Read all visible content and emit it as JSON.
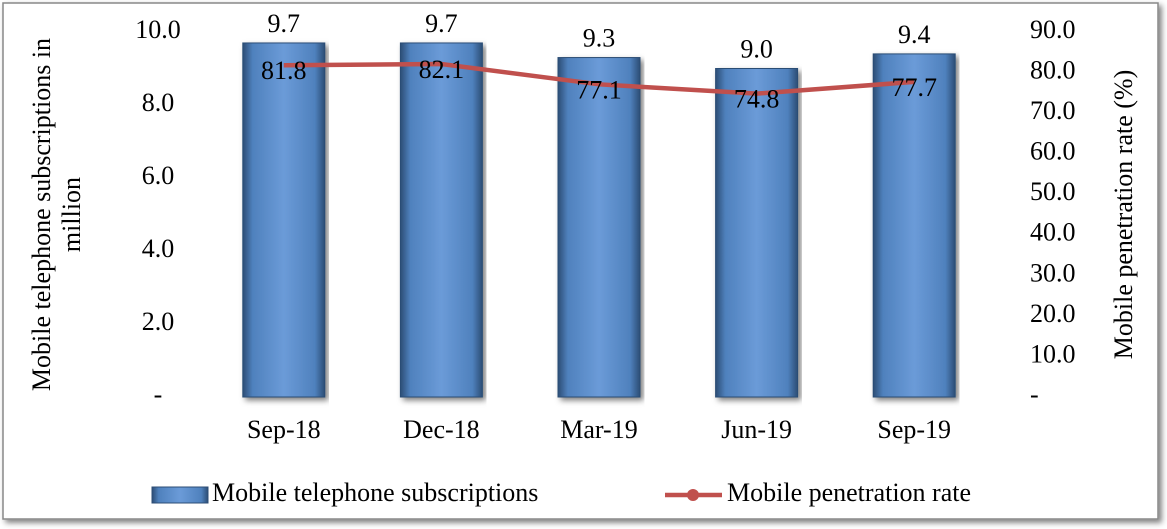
{
  "chart_data": {
    "type": "bar",
    "categories": [
      "Sep-18",
      "Dec-18",
      "Mar-19",
      "Jun-19",
      "Sep-19"
    ],
    "series": [
      {
        "name": "Mobile telephone subscriptions",
        "color": "#4f81bd",
        "values": [
          9.7,
          9.7,
          9.3,
          9.0,
          9.4
        ],
        "value_labels": [
          "9.7",
          "9.7",
          "9.3",
          "9.0",
          "9.4"
        ]
      },
      {
        "name": "Mobile penetration rate",
        "type": "line",
        "axis": "y2",
        "color": "#c0504d",
        "values": [
          81.8,
          82.1,
          77.1,
          74.8,
          77.7
        ]
      }
    ],
    "ylabel": [
      "Mobile telephone subscriptions  in",
      "million"
    ],
    "y2label": "Mobile penetration rate (%)",
    "ylim": [
      0,
      10
    ],
    "yticks": [
      {
        "value": 0,
        "label": "-"
      },
      {
        "value": 2,
        "label": "2.0"
      },
      {
        "value": 4,
        "label": "4.0"
      },
      {
        "value": 6,
        "label": "6.0"
      },
      {
        "value": 8,
        "label": "8.0"
      },
      {
        "value": 10,
        "label": "10.0"
      }
    ],
    "y2lim": [
      0,
      90
    ],
    "y2ticks": [
      {
        "value": 0,
        "label": "-"
      },
      {
        "value": 10,
        "label": "10.0"
      },
      {
        "value": 20,
        "label": "20.0"
      },
      {
        "value": 30,
        "label": "30.0"
      },
      {
        "value": 40,
        "label": "40.0"
      },
      {
        "value": 50,
        "label": "50.0"
      },
      {
        "value": 60,
        "label": "60.0"
      },
      {
        "value": 70,
        "label": "70.0"
      },
      {
        "value": 80,
        "label": "80.0"
      },
      {
        "value": 90,
        "label": "90.0"
      }
    ],
    "legend": "bottom"
  }
}
